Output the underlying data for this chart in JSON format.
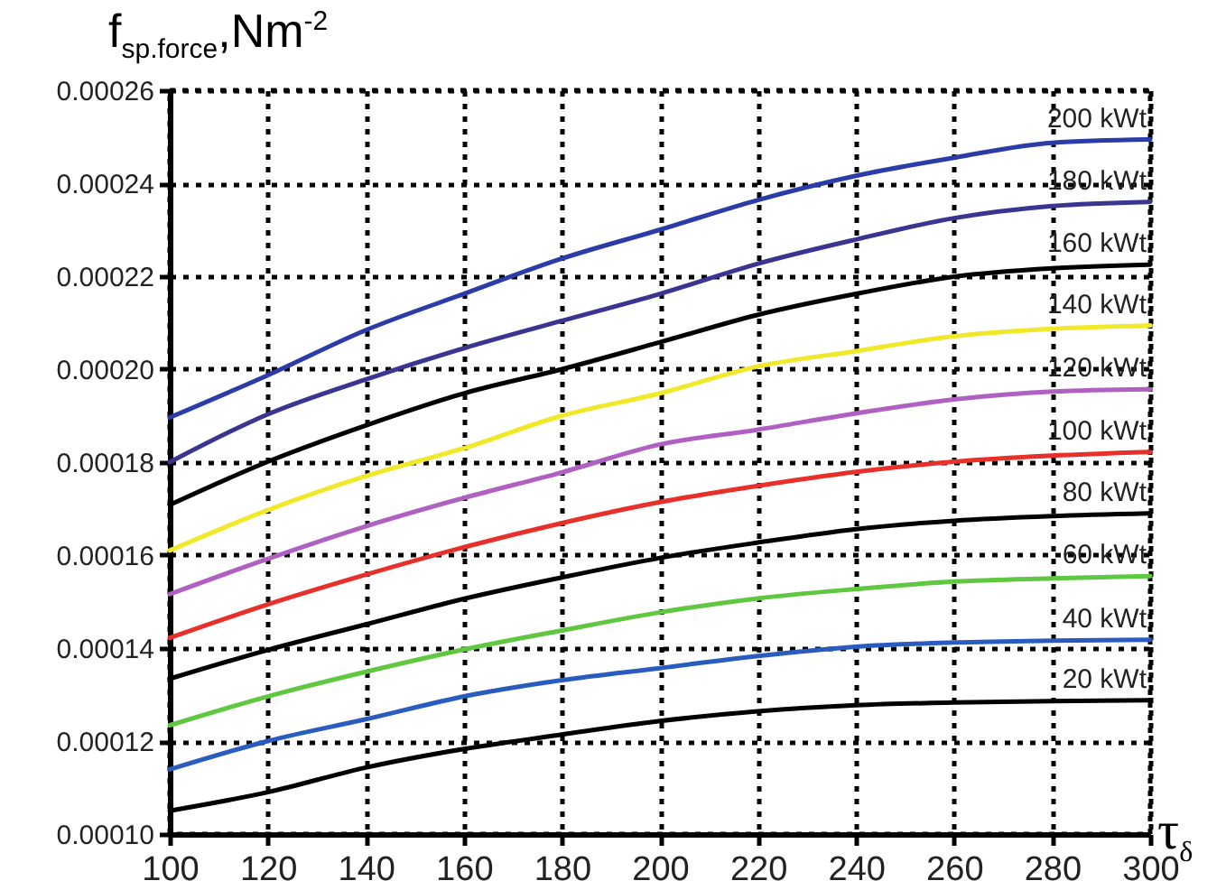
{
  "chart_data": {
    "type": "line",
    "xlabel": "τ$_{δ}$",
    "ylabel": "f$_{sp.force}$,Nm$^{-2}$",
    "x": [
      100,
      120,
      140,
      160,
      180,
      200,
      220,
      240,
      260,
      280,
      300
    ],
    "series": [
      {
        "name": "200 kWt",
        "color": "#2b3ba8",
        "values": [
          0.0001896,
          0.0001987,
          0.0002084,
          0.0002162,
          0.0002238,
          0.00023,
          0.0002364,
          0.0002416,
          0.0002455,
          0.0002487,
          0.0002494
        ]
      },
      {
        "name": "180 kWt",
        "color": "#3a3590",
        "values": [
          0.00018,
          0.0001903,
          0.0001978,
          0.0002045,
          0.0002104,
          0.0002162,
          0.0002227,
          0.0002279,
          0.0002325,
          0.0002351,
          0.000236
        ]
      },
      {
        "name": "160 kWt",
        "color": "#000000",
        "values": [
          0.0001708,
          0.0001801,
          0.0001879,
          0.0001948,
          0.0002,
          0.0002058,
          0.0002117,
          0.0002162,
          0.0002199,
          0.0002217,
          0.0002225
        ]
      },
      {
        "name": "140 kWt",
        "color": "#f0e828",
        "values": [
          0.000161,
          0.0001697,
          0.000177,
          0.000183,
          0.00019,
          0.0001948,
          0.0002006,
          0.0002039,
          0.0002071,
          0.0002087,
          0.0002094
        ]
      },
      {
        "name": "120 kWt",
        "color": "#b060c0",
        "values": [
          0.0001516,
          0.0001592,
          0.0001662,
          0.0001723,
          0.0001778,
          0.0001838,
          0.000187,
          0.0001905,
          0.0001935,
          0.0001952,
          0.0001957
        ]
      },
      {
        "name": "100 kWt",
        "color": "#e8302a",
        "values": [
          0.0001422,
          0.0001494,
          0.0001558,
          0.0001617,
          0.0001669,
          0.0001714,
          0.0001749,
          0.0001779,
          0.0001801,
          0.0001814,
          0.0001822
        ]
      },
      {
        "name": "80 kWt",
        "color": "#000000",
        "values": [
          0.0001334,
          0.0001396,
          0.0001451,
          0.0001506,
          0.0001552,
          0.0001594,
          0.0001627,
          0.0001656,
          0.0001674,
          0.0001684,
          0.000169
        ]
      },
      {
        "name": "60 kWt",
        "color": "#60c840",
        "values": [
          0.0001234,
          0.0001296,
          0.0001349,
          0.0001397,
          0.0001438,
          0.0001477,
          0.0001507,
          0.0001527,
          0.0001543,
          0.000155,
          0.0001555
        ]
      },
      {
        "name": "40 kWt",
        "color": "#2a5cc0",
        "values": [
          0.0001139,
          0.00012,
          0.0001247,
          0.0001296,
          0.0001331,
          0.0001357,
          0.0001383,
          0.0001403,
          0.0001412,
          0.0001416,
          0.0001418
        ]
      },
      {
        "name": "20 kWt",
        "color": "#000000",
        "values": [
          0.000105,
          0.000109,
          0.0001143,
          0.0001183,
          0.0001214,
          0.0001243,
          0.0001264,
          0.0001277,
          0.0001283,
          0.0001286,
          0.0001288
        ]
      }
    ],
    "xlim": [
      100,
      300
    ],
    "xticks": [
      100,
      120,
      140,
      160,
      180,
      200,
      220,
      240,
      260,
      280,
      300
    ],
    "ylim": [
      0.0001,
      0.00026
    ],
    "yticks": [
      {
        "value": 0.0001,
        "label": "0.00010"
      },
      {
        "value": 0.00012,
        "label": "0.00012"
      },
      {
        "value": 0.00014,
        "label": "0.00014"
      },
      {
        "value": 0.00016,
        "label": "0.00016"
      },
      {
        "value": 0.00018,
        "label": "0.00018"
      },
      {
        "value": 0.0002,
        "label": "0.00020"
      },
      {
        "value": 0.00022,
        "label": "0.00022"
      },
      {
        "value": 0.00024,
        "label": "0.00024"
      },
      {
        "value": 0.00026,
        "label": "0.00026"
      }
    ],
    "grid": true,
    "legend": false,
    "line_style": "solid",
    "marker": "none"
  }
}
